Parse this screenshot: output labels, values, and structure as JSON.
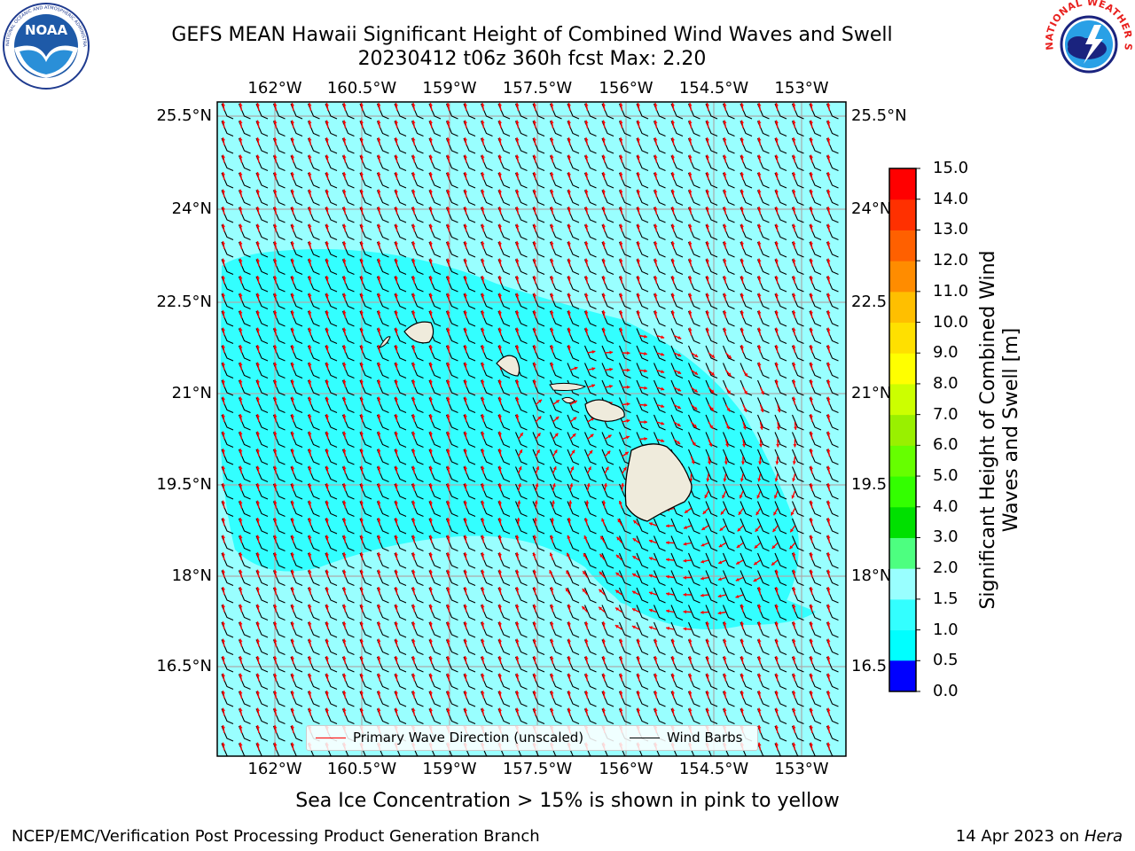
{
  "header": {
    "title_line1": "GEFS MEAN Hawaii Significant Height of Combined Wind Waves and Swell",
    "title_line2": "20230412 t06z 360h fcst   Max: 2.20"
  },
  "logos": {
    "left": "noaa-logo",
    "left_text": "NOAA",
    "left_ring_text": "NATIONAL OCEANIC AND ATMOSPHERIC ADMINISTRATION · U.S. DEPARTMENT OF COMMERCE",
    "right": "nws-logo",
    "right_ring_text": "NATIONAL WEATHER SERVICE"
  },
  "map": {
    "lon_labels": [
      "162°W",
      "160.5°W",
      "159°W",
      "157.5°W",
      "156°W",
      "154.5°W",
      "153°W"
    ],
    "lat_labels_left": [
      "25.5°N",
      "24°N",
      "22.5°N",
      "21°N",
      "19.5°N",
      "18°N",
      "16.5°N"
    ],
    "lat_labels_right": [
      "25.5°N",
      "24°N",
      "22.5",
      "21°N",
      "19.5",
      "18°N",
      "16.5"
    ],
    "ocean_colors": {
      "light": "#99ffff",
      "mid": "#33ffff",
      "land": "#efebdc",
      "gridline": "#aaaaaa",
      "wave_arrow": "#ff0000",
      "barb": "#000000"
    }
  },
  "colorbar": {
    "ticks": [
      "15.0",
      "14.0",
      "13.0",
      "12.0",
      "11.0",
      "10.0",
      "9.0",
      "8.0",
      "7.0",
      "6.0",
      "5.0",
      "4.0",
      "3.0",
      "2.0",
      "1.5",
      "1.0",
      "0.5",
      "0.0"
    ],
    "colors": [
      "#0000ff",
      "#0080ff",
      "#00ffff",
      "#33ffff",
      "#99ffff",
      "#4dff80",
      "#00e000",
      "#33ff00",
      "#66ff00",
      "#99f000",
      "#ccff00",
      "#ffff00",
      "#ffe000",
      "#ffbf00",
      "#ff8c00",
      "#ff6000",
      "#ff3000",
      "#ff0000"
    ],
    "label": "Significant Height of Combined Wind Waves and Swell [m]"
  },
  "legend": {
    "wave_label": "Primary Wave Direction (unscaled)",
    "barb_label": "Wind Barbs"
  },
  "footer": {
    "note": "Sea Ice Concentration > 15% is shown in pink to yellow",
    "left": "NCEP/EMC/Verification Post Processing Product Generation Branch",
    "right_prefix": "14 Apr 2023 on ",
    "right_host": "Hera"
  }
}
